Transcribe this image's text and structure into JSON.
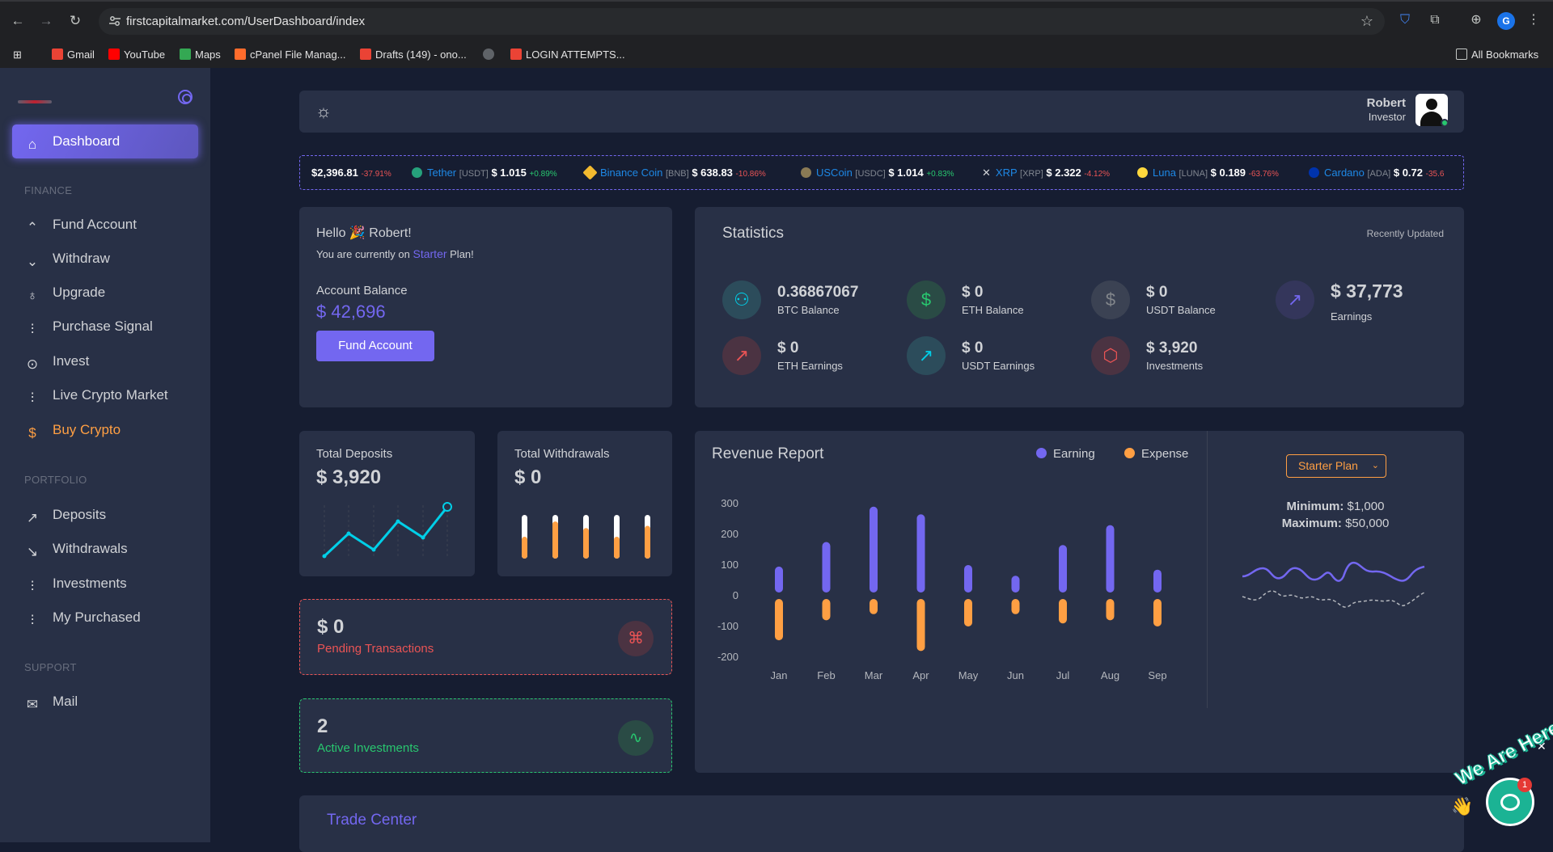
{
  "browser": {
    "url": "firstcapitalmarket.com/UserDashboard/index",
    "bookmarks": [
      "Gmail",
      "YouTube",
      "Maps",
      "cPanel File Manag...",
      "Drafts (149) - ono...",
      "LOGIN ATTEMPTS...",
      "All Bookmarks"
    ],
    "profile_initial": "G"
  },
  "sidebar": {
    "active": "Dashboard",
    "finance_head": "FINANCE",
    "finance": [
      "Fund Account",
      "Withdraw",
      "Upgrade",
      "Purchase Signal",
      "Invest",
      "Live Crypto Market",
      "Buy Crypto"
    ],
    "portfolio_head": "PORTFOLIO",
    "portfolio": [
      "Deposits",
      "Withdrawals",
      "Investments",
      "My Purchased"
    ],
    "support_head": "SUPPORT",
    "support": [
      "Mail"
    ]
  },
  "user": {
    "name": "Robert",
    "role": "Investor"
  },
  "ticker": [
    {
      "name": "",
      "symbol": "",
      "price": "$2,396.81",
      "change": "-37.91%",
      "dir": "dn"
    },
    {
      "name": "Tether",
      "symbol": "[USDT]",
      "price": "$ 1.015",
      "change": "+0.89%",
      "dir": "up"
    },
    {
      "name": "Binance Coin",
      "symbol": "[BNB]",
      "price": "$ 638.83",
      "change": "-10.86%",
      "dir": "dn"
    },
    {
      "name": "USCoin",
      "symbol": "[USDC]",
      "price": "$ 1.014",
      "change": "+0.83%",
      "dir": "up"
    },
    {
      "name": "XRP",
      "symbol": "[XRP]",
      "price": "$ 2.322",
      "change": "-4.12%",
      "dir": "dn"
    },
    {
      "name": "Luna",
      "symbol": "[LUNA]",
      "price": "$ 0.189",
      "change": "-63.76%",
      "dir": "dn"
    },
    {
      "name": "Cardano",
      "symbol": "[ADA]",
      "price": "$ 0.72",
      "change": "-35.6",
      "dir": "dn"
    }
  ],
  "hello": {
    "greeting": "Hello 🎉 Robert!",
    "plan_prefix": "You are currently on",
    "plan": "Starter",
    "plan_suffix": "Plan!",
    "balance_label": "Account Balance",
    "balance": "$ 42,696",
    "button": "Fund Account"
  },
  "statistics": {
    "title": "Statistics",
    "updated": "Recently Updated",
    "items": [
      {
        "value": "0.36867067",
        "label": "BTC Balance"
      },
      {
        "value": "$ 0",
        "label": "ETH Balance"
      },
      {
        "value": "$ 0",
        "label": "USDT Balance"
      },
      {
        "value": "$ 37,773",
        "label": "Earnings"
      },
      {
        "value": "$ 0",
        "label": "ETH Earnings"
      },
      {
        "value": "$ 0",
        "label": "USDT Earnings"
      },
      {
        "value": "$ 3,920",
        "label": "Investments"
      }
    ]
  },
  "deposits": {
    "title": "Total Deposits",
    "value": "$ 3,920"
  },
  "withdrawals": {
    "title": "Total Withdrawals",
    "value": "$ 0",
    "bar_fill": [
      0.5,
      0.85,
      0.7,
      0.5,
      0.75
    ]
  },
  "pending": {
    "value": "$ 0",
    "label": "Pending Transactions"
  },
  "active": {
    "value": "2",
    "label": "Active Investments"
  },
  "revenue": {
    "title": "Revenue Report",
    "legend_earning": "Earning",
    "legend_expense": "Expense",
    "select": "Starter Plan",
    "min_label": "Minimum:",
    "min_value": "$1,000",
    "max_label": "Maximum:",
    "max_value": "$50,000"
  },
  "chart_data": {
    "type": "bar",
    "categories": [
      "Jan",
      "Feb",
      "Mar",
      "Apr",
      "May",
      "Jun",
      "Jul",
      "Aug",
      "Sep"
    ],
    "series": [
      {
        "name": "Earning",
        "values": [
          95,
          175,
          290,
          265,
          100,
          65,
          165,
          230,
          85
        ]
      },
      {
        "name": "Expense",
        "values": [
          -145,
          -80,
          -60,
          -180,
          -100,
          -60,
          -90,
          -80,
          -100
        ]
      }
    ],
    "yticks": [
      300,
      200,
      100,
      0,
      -100,
      -200
    ],
    "ylim": [
      -200,
      300
    ],
    "colors": {
      "Earning": "#7367f0",
      "Expense": "#ff9f43"
    }
  },
  "trade": {
    "title": "Trade Center"
  },
  "chat": {
    "text": "We Are Here!",
    "badge": "1"
  }
}
